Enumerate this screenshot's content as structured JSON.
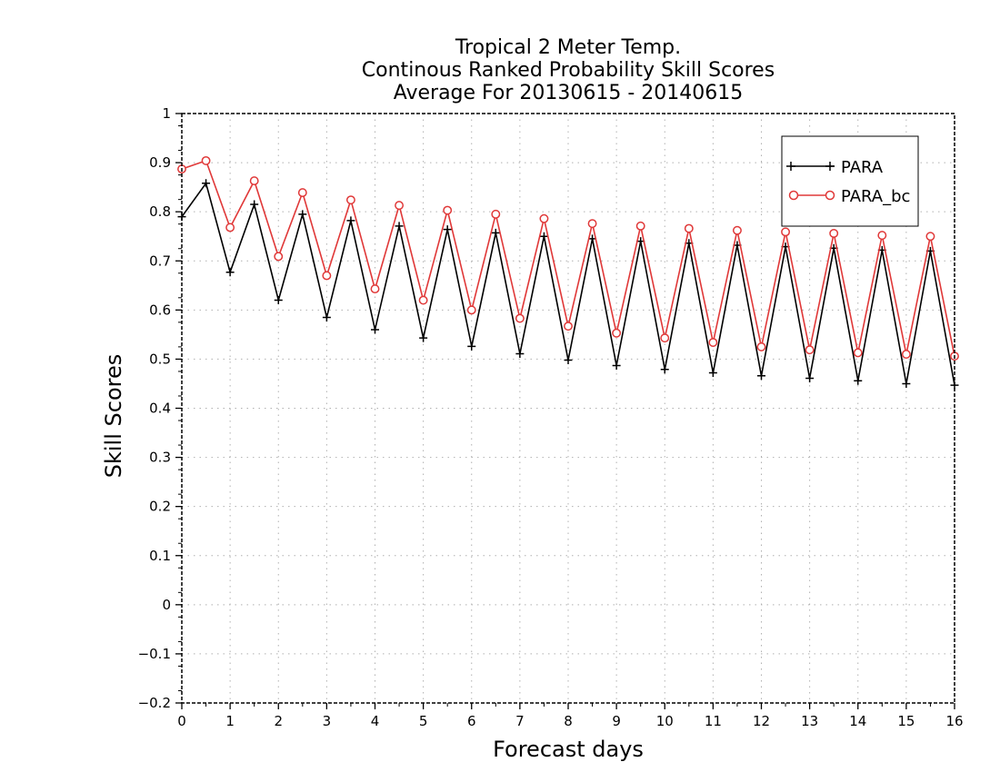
{
  "chart_data": {
    "type": "line",
    "title_lines": [
      "Tropical 2 Meter Temp.",
      "Continous Ranked Probability Skill Scores",
      "Average For 20130615 - 20140615"
    ],
    "xlabel": "Forecast days",
    "ylabel": "Skill Scores",
    "xlim": [
      0,
      16
    ],
    "ylim": [
      -0.2,
      1
    ],
    "x_ticks": [
      "0",
      "1",
      "2",
      "3",
      "4",
      "5",
      "6",
      "7",
      "8",
      "9",
      "10",
      "11",
      "12",
      "13",
      "14",
      "15",
      "16"
    ],
    "y_ticks": [
      "−0.2",
      "−0.1",
      "0",
      "0.1",
      "0.2",
      "0.3",
      "0.4",
      "0.5",
      "0.6",
      "0.7",
      "0.8",
      "0.9",
      "1"
    ],
    "grid": true,
    "legend_position": "top-right",
    "x": [
      0,
      0.5,
      1,
      1.5,
      2,
      2.5,
      3,
      3.5,
      4,
      4.5,
      5,
      5.5,
      6,
      6.5,
      7,
      7.5,
      8,
      8.5,
      9,
      9.5,
      10,
      10.5,
      11,
      11.5,
      12,
      12.5,
      13,
      13.5,
      14,
      14.5,
      15,
      15.5,
      16
    ],
    "series": [
      {
        "name": "PARA",
        "color": "#000000",
        "marker": "plus",
        "values": [
          0.79,
          0.858,
          0.677,
          0.815,
          0.62,
          0.795,
          0.585,
          0.782,
          0.56,
          0.771,
          0.543,
          0.764,
          0.526,
          0.757,
          0.511,
          0.75,
          0.498,
          0.745,
          0.487,
          0.74,
          0.479,
          0.736,
          0.472,
          0.732,
          0.466,
          0.729,
          0.461,
          0.726,
          0.456,
          0.722,
          0.45,
          0.72,
          0.447
        ]
      },
      {
        "name": "PARA_bc",
        "color": "#e03838",
        "marker": "circle",
        "values": [
          0.887,
          0.904,
          0.768,
          0.863,
          0.709,
          0.839,
          0.67,
          0.824,
          0.643,
          0.813,
          0.62,
          0.803,
          0.6,
          0.795,
          0.583,
          0.786,
          0.567,
          0.776,
          0.553,
          0.771,
          0.543,
          0.766,
          0.534,
          0.762,
          0.525,
          0.759,
          0.519,
          0.756,
          0.513,
          0.752,
          0.51,
          0.75,
          0.506
        ]
      }
    ]
  }
}
